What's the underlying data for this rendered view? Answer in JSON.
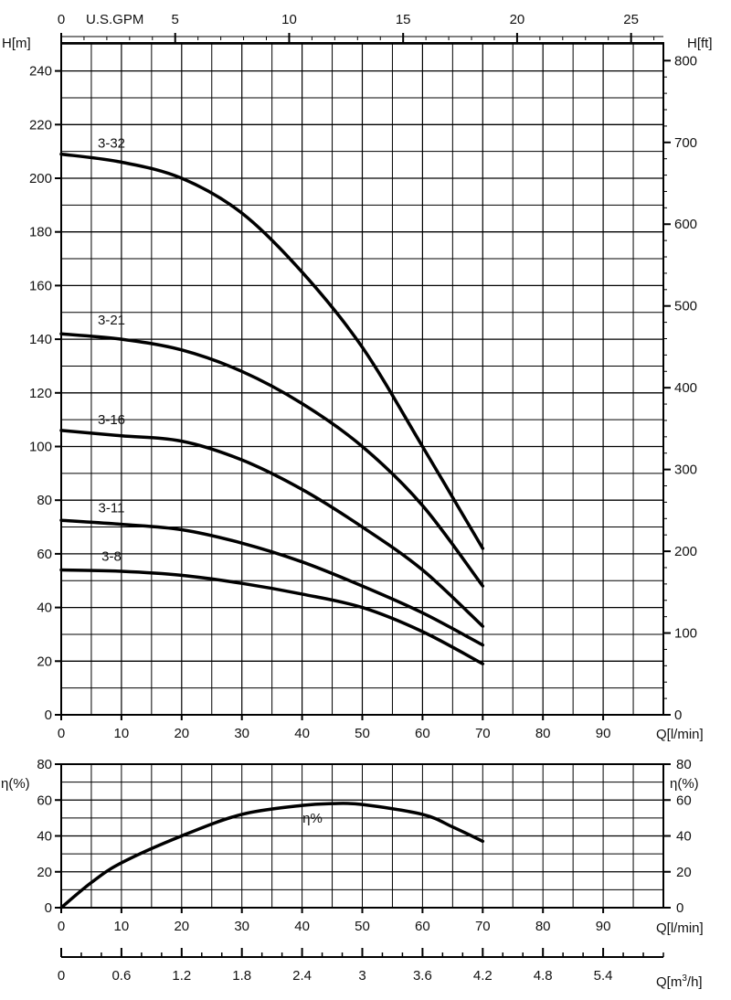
{
  "chart_data": [
    {
      "type": "line",
      "title": "",
      "ylabel_left": "H[m]",
      "ylabel_right": "H[ft]",
      "xlabel": "Q[l/min]",
      "top_axis_label": "U.S.GPM",
      "xlim": [
        0,
        100
      ],
      "ylim": [
        0,
        250
      ],
      "x_ticks": [
        "0",
        "10",
        "20",
        "30",
        "40",
        "50",
        "60",
        "70",
        "80",
        "90"
      ],
      "y_ticks_left": [
        "0",
        "20",
        "40",
        "60",
        "80",
        "100",
        "120",
        "140",
        "160",
        "180",
        "200",
        "220",
        "240"
      ],
      "y_ticks_right": [
        "0",
        "100",
        "200",
        "300",
        "400",
        "500",
        "600",
        "700",
        "800"
      ],
      "gpm_ticks": [
        "0",
        "5",
        "10",
        "15",
        "20",
        "25"
      ],
      "grid": true,
      "series": [
        {
          "name": "3-32",
          "x": [
            0,
            10,
            20,
            30,
            40,
            50,
            60,
            70
          ],
          "y": [
            209,
            206,
            200,
            187,
            165,
            137,
            100,
            62
          ]
        },
        {
          "name": "3-21",
          "x": [
            0,
            10,
            20,
            30,
            40,
            50,
            60,
            70
          ],
          "y": [
            142,
            140,
            136,
            128,
            116,
            100,
            78,
            48
          ]
        },
        {
          "name": "3-16",
          "x": [
            0,
            10,
            20,
            30,
            40,
            50,
            60,
            70
          ],
          "y": [
            106,
            104,
            102,
            95,
            84,
            70,
            54,
            33
          ]
        },
        {
          "name": "3-11",
          "x": [
            0,
            10,
            20,
            30,
            40,
            50,
            60,
            70
          ],
          "y": [
            72.5,
            71,
            69,
            64,
            57,
            48,
            38,
            26
          ]
        },
        {
          "name": "3-8",
          "x": [
            0,
            10,
            20,
            30,
            40,
            50,
            60,
            70
          ],
          "y": [
            54,
            53.5,
            52,
            49,
            45,
            40,
            31,
            19
          ]
        }
      ]
    },
    {
      "type": "line",
      "ylabel_left": "η(%)",
      "ylabel_right": "η(%)",
      "xlabel": "Q[l/min]",
      "xlim": [
        0,
        100
      ],
      "ylim": [
        0,
        80
      ],
      "x_ticks": [
        "0",
        "10",
        "20",
        "30",
        "40",
        "50",
        "60",
        "70",
        "80",
        "90"
      ],
      "y_ticks": [
        "0",
        "20",
        "40",
        "60",
        "80"
      ],
      "grid": true,
      "series": [
        {
          "name": "η%",
          "x": [
            0,
            5,
            10,
            20,
            30,
            40,
            45,
            50,
            60,
            65,
            70
          ],
          "y": [
            0,
            14,
            25,
            40,
            52,
            57,
            58,
            57.5,
            52,
            45,
            37
          ]
        }
      ]
    },
    {
      "type": "axis",
      "xlabel_base": "Q[m",
      "xlabel_sup": "3",
      "xlabel_end": "/h]",
      "x_ticks": [
        "0",
        "0.6",
        "1.2",
        "1.8",
        "2.4",
        "3",
        "3.6",
        "4.2",
        "4.8",
        "5.4"
      ]
    }
  ]
}
